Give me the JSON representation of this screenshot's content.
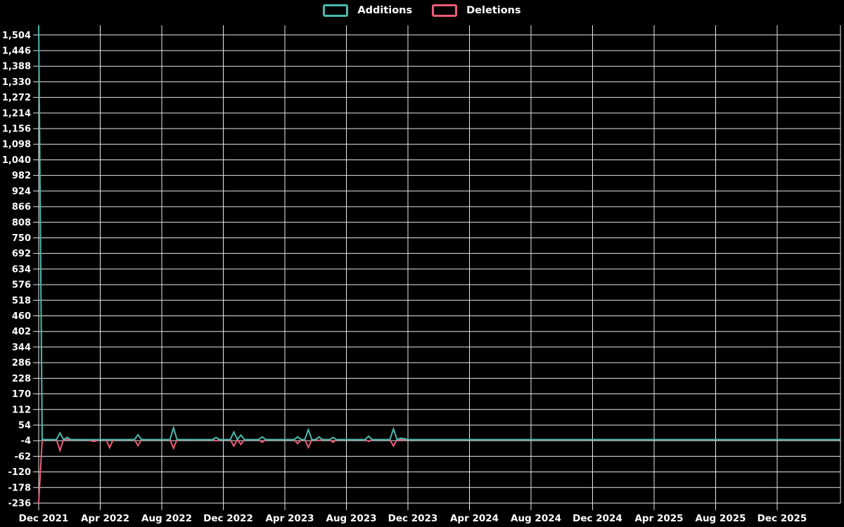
{
  "chart_data": {
    "type": "line",
    "title": "",
    "legend_position": "top-center",
    "grid": true,
    "background_color": "#000000",
    "grid_color": "#e8e8e8",
    "text_color": "#ffffff",
    "x_axis": {
      "tick_labels": [
        "Dec 2021",
        "Apr 2022",
        "Aug 2022",
        "Dec 2022",
        "Apr 2023",
        "Aug 2023",
        "Dec 2023",
        "Apr 2024",
        "Aug 2024",
        "Dec 2024",
        "Apr 2025",
        "Aug 2025",
        "Dec 2025"
      ],
      "unit": "week",
      "start_date": "2021-12-05",
      "total_weeks": 226
    },
    "y_axis": {
      "min": -236,
      "max": 1540,
      "tick_step": 58,
      "tick_values": [
        1504,
        1446,
        1388,
        1330,
        1272,
        1214,
        1156,
        1098,
        1040,
        982,
        924,
        866,
        808,
        750,
        692,
        634,
        576,
        518,
        460,
        402,
        344,
        286,
        228,
        170,
        112,
        54,
        -4,
        -62,
        -120,
        -178,
        -236
      ]
    },
    "series": [
      {
        "name": "Additions",
        "color": "#4ab9af",
        "baseline": 0,
        "events": [
          {
            "week": 0,
            "date": "2021-12-05",
            "value": 1540
          },
          {
            "week": 6,
            "date": "2022-01-16",
            "value": 25
          },
          {
            "week": 8,
            "date": "2022-01-30",
            "value": 8
          },
          {
            "week": 28,
            "date": "2022-06-19",
            "value": 18
          },
          {
            "week": 38,
            "date": "2022-08-28",
            "value": 44
          },
          {
            "week": 50,
            "date": "2022-11-20",
            "value": 8
          },
          {
            "week": 55,
            "date": "2022-12-25",
            "value": 28
          },
          {
            "week": 57,
            "date": "2023-01-08",
            "value": 17
          },
          {
            "week": 63,
            "date": "2023-02-19",
            "value": 10
          },
          {
            "week": 73,
            "date": "2023-05-07",
            "value": 10
          },
          {
            "week": 76,
            "date": "2023-05-28",
            "value": 37
          },
          {
            "week": 79,
            "date": "2023-06-18",
            "value": 10
          },
          {
            "week": 83,
            "date": "2023-07-16",
            "value": 8
          },
          {
            "week": 93,
            "date": "2023-09-17",
            "value": 13
          },
          {
            "week": 100,
            "date": "2023-11-05",
            "value": 40
          },
          {
            "week": 102,
            "date": "2023-11-19",
            "value": 5
          },
          {
            "week": 103,
            "date": "2023-11-26",
            "value": 4
          }
        ]
      },
      {
        "name": "Deletions",
        "color": "#ee5c77",
        "baseline": 0,
        "events": [
          {
            "week": 0,
            "date": "2021-12-05",
            "value": -236
          },
          {
            "week": 6,
            "date": "2022-01-16",
            "value": -40
          },
          {
            "week": 15,
            "date": "2022-03-20",
            "value": -6
          },
          {
            "week": 16,
            "date": "2022-03-27",
            "value": -6
          },
          {
            "week": 20,
            "date": "2022-04-24",
            "value": -30
          },
          {
            "week": 28,
            "date": "2022-06-19",
            "value": -22
          },
          {
            "week": 38,
            "date": "2022-08-28",
            "value": -32
          },
          {
            "week": 50,
            "date": "2022-11-20",
            "value": -5
          },
          {
            "week": 55,
            "date": "2022-12-25",
            "value": -24
          },
          {
            "week": 57,
            "date": "2023-01-08",
            "value": -18
          },
          {
            "week": 63,
            "date": "2023-02-19",
            "value": -10
          },
          {
            "week": 73,
            "date": "2023-05-07",
            "value": -15
          },
          {
            "week": 76,
            "date": "2023-05-28",
            "value": -29
          },
          {
            "week": 79,
            "date": "2023-06-18",
            "value": -3
          },
          {
            "week": 83,
            "date": "2023-07-16",
            "value": -10
          },
          {
            "week": 93,
            "date": "2023-09-17",
            "value": -7
          },
          {
            "week": 100,
            "date": "2023-11-05",
            "value": -24
          }
        ]
      }
    ]
  }
}
